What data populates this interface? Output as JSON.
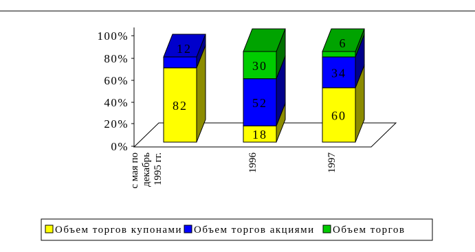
{
  "chart_data": {
    "type": "bar",
    "stacked": "percent",
    "style": "3d",
    "categories": [
      "с мая по декабрь 1995 гг.",
      "1996",
      "1997"
    ],
    "category_lines": [
      [
        "с мая по",
        "декабрь",
        "1995 гг."
      ],
      [
        "1996"
      ],
      [
        "1997"
      ]
    ],
    "series": [
      {
        "name": "Объем торгов купонами",
        "color": "#ffff00",
        "values": [
          82,
          18,
          60
        ]
      },
      {
        "name": "Объем торгов акциями",
        "color": "#0000ff",
        "values": [
          12,
          52,
          34
        ]
      },
      {
        "name": "Объем торгов",
        "color": "#00cc00",
        "values": [
          0,
          30,
          6
        ]
      }
    ],
    "data_labels": [
      [
        "82",
        "18",
        "60"
      ],
      [
        "12",
        "52",
        "34"
      ],
      [
        "",
        "30",
        "6"
      ]
    ],
    "y_ticks": [
      "0%",
      "20%",
      "40%",
      "60%",
      "80%",
      "100%"
    ],
    "ylim": [
      0,
      100
    ],
    "grid": false,
    "legend_position": "bottom"
  },
  "legend_labels_visible": [
    "Объем торгов купонами",
    "Объем торгов акциями",
    "Объем торгов"
  ]
}
